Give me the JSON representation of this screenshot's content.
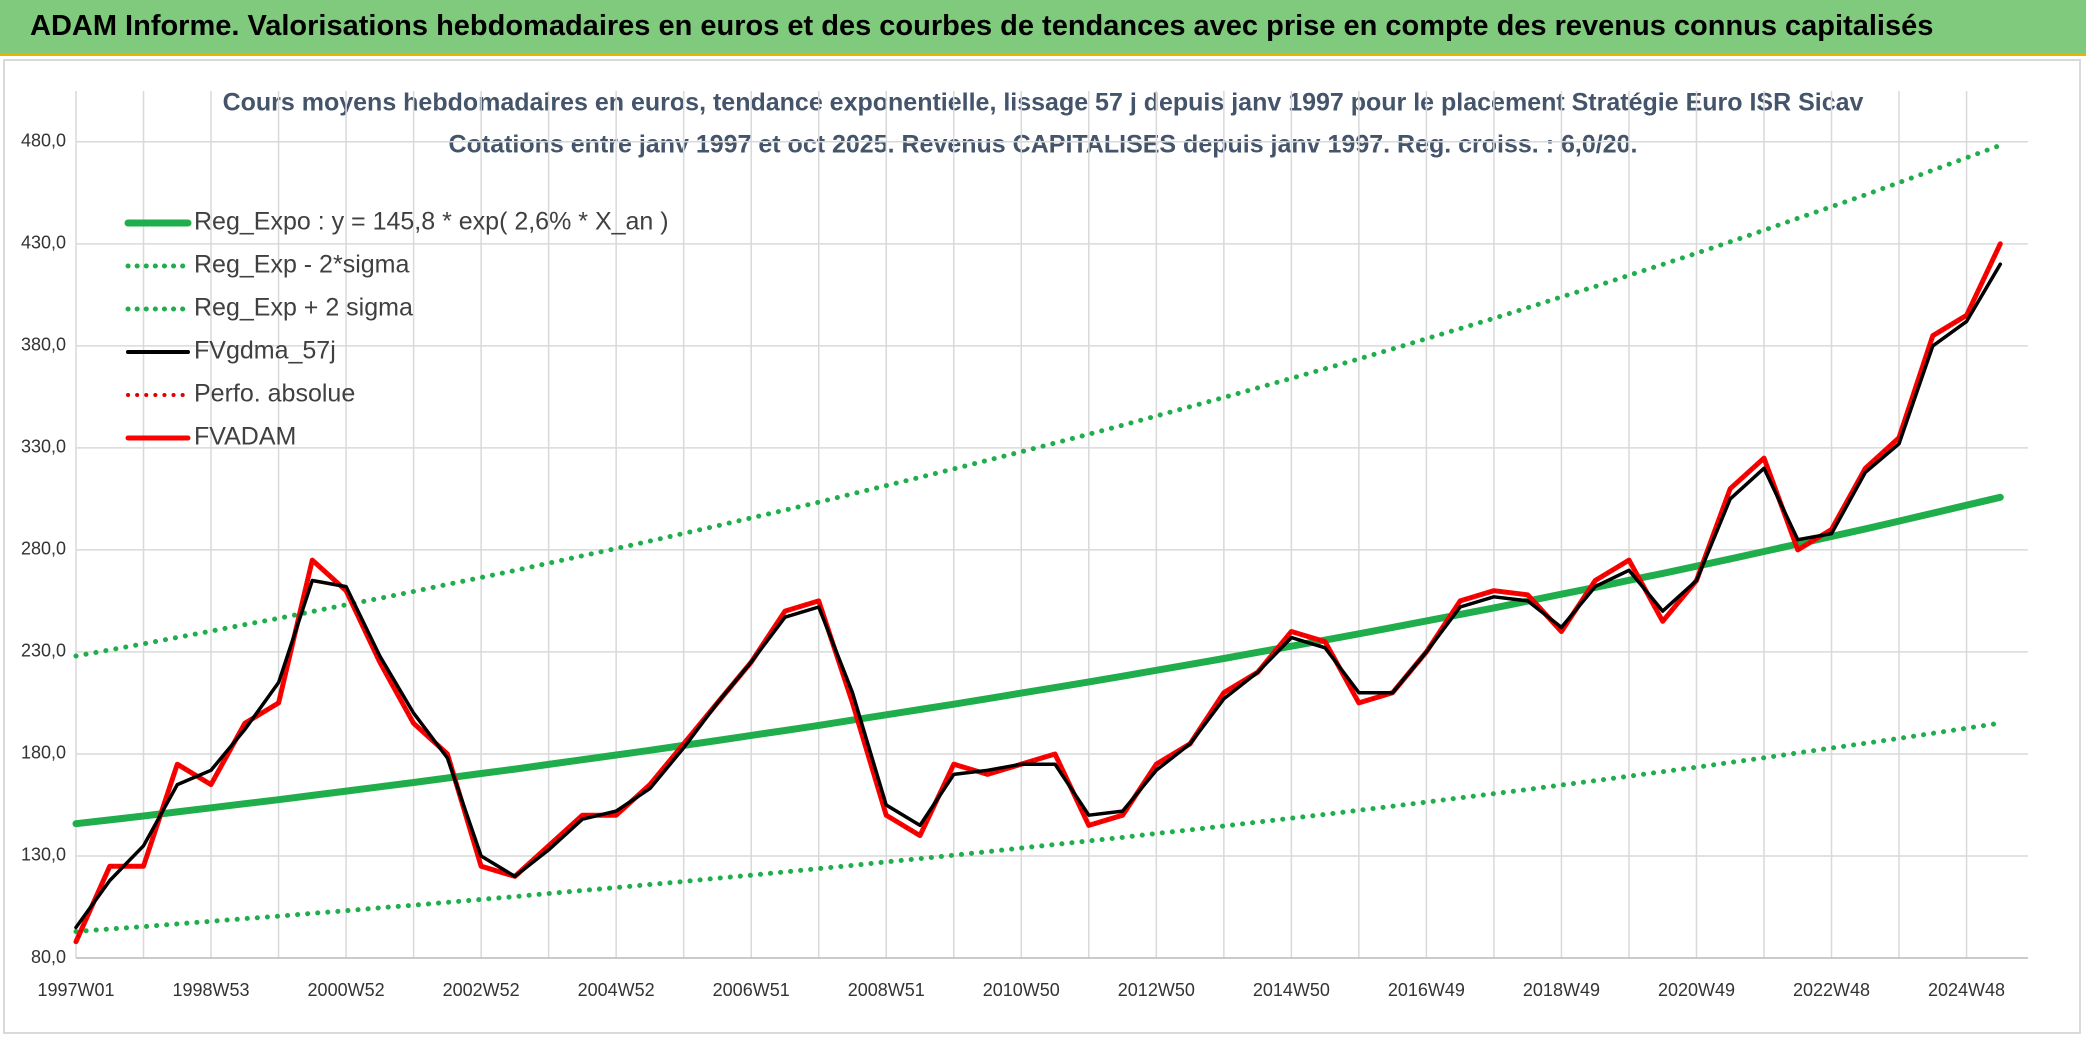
{
  "header": {
    "title": "ADAM Informe. Valorisations hebdomadaires en euros et des courbes de tendances avec prise en compte des revenus connus capitalisés"
  },
  "chart_data": {
    "type": "line",
    "title": "Cours moyens hebdomadaires en euros, tendance exponentielle, lissage 57 j depuis janv 1997 pour le placement Stratégie Euro ISR Sicav",
    "subtitle": "Cotations entre janv 1997 et oct 2025. Revenus CAPITALISES depuis janv 1997. Reg. croiss. : 6,0/20.",
    "categories": [
      "1997W01",
      null,
      null,
      null,
      "1998W53",
      null,
      null,
      null,
      "2000W52",
      null,
      null,
      null,
      "2002W52",
      null,
      null,
      null,
      "2004W52",
      null,
      null,
      null,
      "2006W51",
      null,
      null,
      null,
      "2008W51",
      null,
      null,
      null,
      "2010W50",
      null,
      null,
      null,
      "2012W50",
      null,
      null,
      null,
      "2014W50",
      null,
      null,
      null,
      "2016W49",
      null,
      null,
      null,
      "2018W49",
      null,
      null,
      null,
      "2020W49",
      null,
      null,
      null,
      "2022W48",
      null,
      null,
      null,
      "2024W48",
      null
    ],
    "ylim": [
      80,
      500
    ],
    "yticks": [
      {
        "value": 80,
        "label": "80,0"
      },
      {
        "value": 130,
        "label": "130,0"
      },
      {
        "value": 180,
        "label": "180,0"
      },
      {
        "value": 230,
        "label": "230,0"
      },
      {
        "value": 280,
        "label": "280,0"
      },
      {
        "value": 330,
        "label": "330,0"
      },
      {
        "value": 380,
        "label": "380,0"
      },
      {
        "value": 430,
        "label": "430,0"
      },
      {
        "value": 480,
        "label": "480,0"
      }
    ],
    "grid": true,
    "legend": "upper-left",
    "series": [
      {
        "name": "Reg_Expo : y = 145,8 * exp( 2,6% *  X_an )",
        "color": "#1fae4b",
        "line_style": "solid",
        "values": [
          145.8,
          147.7,
          149.6,
          151.6,
          153.6,
          155.6,
          157.6,
          159.7,
          161.8,
          163.9,
          166.0,
          168.2,
          170.4,
          172.6,
          174.9,
          177.2,
          179.5,
          181.8,
          184.2,
          186.6,
          189.1,
          191.5,
          194.0,
          196.6,
          199.2,
          201.8,
          204.4,
          207.1,
          209.8,
          212.5,
          215.3,
          218.1,
          221.0,
          223.9,
          226.8,
          229.8,
          232.8,
          235.8,
          238.9,
          242.0,
          245.2,
          248.4,
          251.6,
          254.9,
          258.3,
          261.6,
          265.1,
          268.5,
          272.0,
          275.6,
          279.2,
          282.9,
          286.6,
          290.3,
          294.1,
          298.0,
          301.9,
          305.8
        ]
      },
      {
        "name": "Reg_Exp - 2*sigma",
        "color": "#1fae4b",
        "line_style": "dotted",
        "values": [
          93.0,
          94.2,
          95.4,
          96.7,
          98.0,
          99.3,
          100.5,
          101.9,
          103.2,
          104.6,
          105.9,
          107.3,
          108.7,
          110.1,
          111.6,
          113.1,
          114.5,
          116.0,
          117.5,
          119.1,
          120.6,
          122.2,
          123.8,
          125.4,
          127.1,
          128.7,
          130.4,
          132.1,
          133.9,
          135.6,
          137.4,
          139.1,
          141.0,
          142.8,
          144.7,
          146.6,
          148.5,
          150.4,
          152.4,
          154.4,
          156.4,
          158.5,
          160.5,
          162.6,
          164.8,
          166.9,
          169.1,
          171.3,
          173.5,
          175.8,
          178.1,
          180.5,
          182.9,
          185.2,
          187.6,
          190.1,
          192.6,
          195.1
        ]
      },
      {
        "name": "Reg_Exp + 2 sigma",
        "color": "#1fae4b",
        "line_style": "dotted",
        "values": [
          228.0,
          231.0,
          234.0,
          237.1,
          240.2,
          243.4,
          246.5,
          249.8,
          253.1,
          256.3,
          259.6,
          263.1,
          266.5,
          269.9,
          273.5,
          277.1,
          280.7,
          284.3,
          288.1,
          291.8,
          295.7,
          299.5,
          303.4,
          307.5,
          311.5,
          315.6,
          319.7,
          323.9,
          328.1,
          332.4,
          336.7,
          341.1,
          345.6,
          350.2,
          354.7,
          359.4,
          364.1,
          368.8,
          373.6,
          378.5,
          383.5,
          388.5,
          393.5,
          398.7,
          404.0,
          409.1,
          414.6,
          419.9,
          425.4,
          431.0,
          436.7,
          442.5,
          448.2,
          454.0,
          460.0,
          466.1,
          472.2,
          478.3
        ]
      },
      {
        "name": "FVgdma_57j",
        "color": "#000000",
        "line_style": "solid",
        "values": [
          95,
          118,
          135,
          165,
          172,
          192,
          215,
          265,
          262,
          228,
          200,
          178,
          130,
          120,
          133,
          148,
          152,
          163,
          183,
          205,
          225,
          247,
          252,
          210,
          155,
          145,
          170,
          172,
          175,
          175,
          150,
          152,
          172,
          185,
          207,
          220,
          237,
          232,
          210,
          210,
          230,
          252,
          257,
          255,
          242,
          262,
          270,
          250,
          265,
          305,
          320,
          285,
          288,
          318,
          332,
          380,
          392,
          420
        ]
      },
      {
        "name": "Perfo. absolue",
        "color": "#e00000",
        "line_style": "dotted",
        "values": [
          88,
          125,
          125,
          175,
          165,
          195,
          205,
          275,
          260,
          225,
          195,
          180,
          125,
          120,
          135,
          150,
          150,
          165,
          185,
          205,
          225,
          250,
          255,
          205,
          150,
          140,
          175,
          170,
          175,
          180,
          145,
          150,
          175,
          185,
          210,
          220,
          240,
          235,
          205,
          210,
          230,
          255,
          260,
          258,
          240,
          265,
          275,
          245,
          265,
          310,
          325,
          280,
          290,
          320,
          335,
          385,
          395,
          430
        ]
      },
      {
        "name": "FVADAM",
        "color": "#ff0000",
        "line_style": "solid",
        "values": [
          88,
          125,
          125,
          175,
          165,
          195,
          205,
          275,
          260,
          225,
          195,
          180,
          125,
          120,
          135,
          150,
          150,
          165,
          185,
          205,
          225,
          250,
          255,
          205,
          150,
          140,
          175,
          170,
          175,
          180,
          145,
          150,
          175,
          185,
          210,
          220,
          240,
          235,
          205,
          210,
          230,
          255,
          260,
          258,
          240,
          265,
          275,
          245,
          265,
          310,
          325,
          280,
          290,
          320,
          335,
          385,
          395,
          430
        ]
      }
    ]
  }
}
